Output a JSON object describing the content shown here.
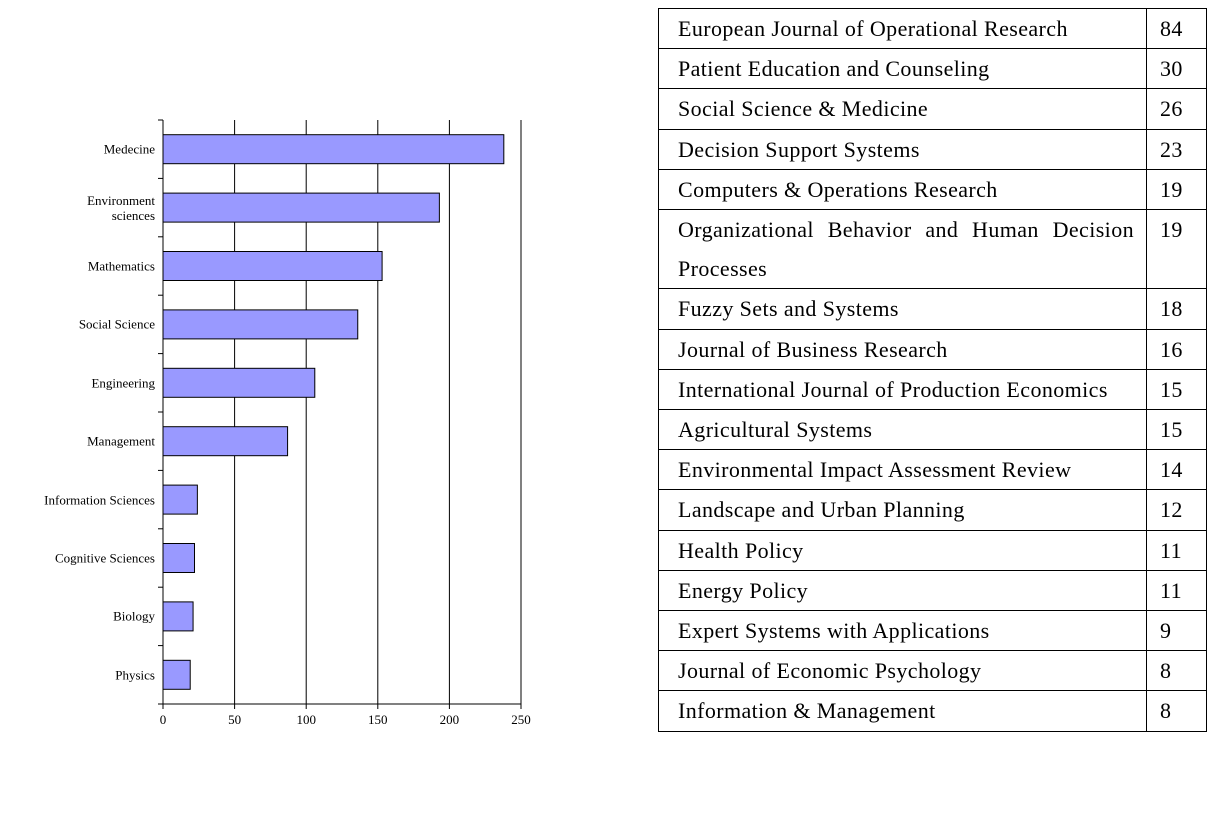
{
  "chart_data": {
    "type": "bar",
    "orientation": "horizontal",
    "categories": [
      "Medecine",
      "Environment\nsciences",
      "Mathematics",
      "Social Science",
      "Engineering",
      "Management",
      "Information Sciences",
      "Cognitive Sciences",
      "Biology",
      "Physics"
    ],
    "values": [
      238,
      193,
      153,
      136,
      106,
      87,
      24,
      22,
      21,
      19
    ],
    "color": "#9999ff",
    "xlim": [
      0,
      250
    ],
    "xticks": [
      0,
      50,
      100,
      150,
      200,
      250
    ],
    "grid": true
  },
  "table": {
    "rows": [
      [
        "European Journal of Operational Re­search",
        84
      ],
      [
        "Patient Education and Counseling",
        30
      ],
      [
        "Social Science & Medicine",
        26
      ],
      [
        "Decision Support Systems",
        23
      ],
      [
        "Computers & Operations Research",
        19
      ],
      [
        "Organizational Behavior and Human Decision Processes",
        19
      ],
      [
        "Fuzzy Sets and Systems",
        18
      ],
      [
        "Journal of Business Research",
        16
      ],
      [
        "International Journal of Production Economics",
        15
      ],
      [
        "Agricultural Systems",
        15
      ],
      [
        "Environmental Impact Assessment Re­view",
        14
      ],
      [
        "Landscape and Urban Planning",
        12
      ],
      [
        "Health Policy",
        11
      ],
      [
        "Energy Policy",
        11
      ],
      [
        "Expert Systems with Applications",
        9
      ],
      [
        "Journal of Economic Psychology",
        8
      ],
      [
        "Information & Management",
        8
      ]
    ]
  }
}
